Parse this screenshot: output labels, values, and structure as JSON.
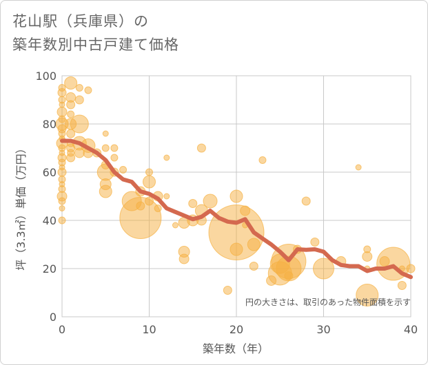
{
  "title_line1": "花山駅（兵庫県）の",
  "title_line2": "築年数別中古戸建て価格",
  "colors": {
    "bubble": "#f5b041",
    "line": "#d4694f",
    "grid": "#c8c8c8"
  },
  "chart_data": {
    "type": "scatter",
    "title": "花山駅（兵庫県）の築年数別中古戸建て価格",
    "xlabel": "築年数（年）",
    "ylabel": "坪（3.3㎡）単価（万円）",
    "xlim": [
      0,
      40
    ],
    "ylim": [
      0,
      100
    ],
    "xticks": [
      0,
      10,
      20,
      30,
      40
    ],
    "yticks": [
      0,
      20,
      40,
      60,
      80,
      100
    ],
    "grid": true,
    "note": "円の大きさは、取引のあった物件面積を示す",
    "bubble_series": {
      "x": [
        0,
        0,
        0,
        0,
        0,
        0,
        0,
        0,
        0,
        0,
        0,
        0,
        0,
        0,
        0,
        0,
        0,
        0,
        0,
        0,
        0,
        0,
        0,
        0,
        1,
        1,
        1,
        1,
        1,
        1,
        1,
        1,
        1,
        1,
        2,
        2,
        2,
        2,
        2,
        3,
        3,
        3,
        4,
        5,
        5,
        5,
        5,
        5,
        5,
        6,
        6,
        6,
        7,
        8,
        9,
        9,
        9,
        10,
        10,
        10,
        11,
        11,
        12,
        12,
        13,
        14,
        14,
        14,
        15,
        15,
        16,
        16,
        16,
        17,
        19,
        20,
        20,
        20,
        21,
        21,
        22,
        22,
        23,
        24,
        25,
        25,
        26,
        26,
        26,
        27,
        28,
        29,
        30,
        32,
        34,
        35,
        35,
        35,
        35,
        37,
        38,
        39,
        39,
        40
      ],
      "y": [
        95,
        93,
        90,
        88,
        85,
        82,
        80,
        78,
        76,
        74,
        72,
        70,
        68,
        66,
        64,
        62,
        60,
        57,
        55,
        53,
        50,
        48,
        45,
        40,
        97,
        91,
        88,
        84,
        80,
        76,
        72,
        70,
        68,
        66,
        95,
        90,
        80,
        72,
        68,
        94,
        71,
        68,
        68,
        76,
        70,
        63,
        60,
        55,
        52,
        70,
        66,
        60,
        61,
        48,
        52,
        46,
        41,
        60,
        56,
        48,
        50,
        45,
        66,
        50,
        38,
        39,
        27,
        24,
        47,
        40,
        70,
        44,
        40,
        48,
        11,
        50,
        35,
        28,
        44,
        38,
        30,
        21,
        65,
        15,
        22,
        18,
        23,
        20,
        17,
        28,
        48,
        31,
        20,
        23,
        62,
        28,
        25,
        20,
        9,
        23,
        22,
        13,
        20,
        20
      ],
      "size": [
        5,
        6,
        5,
        4,
        7,
        5,
        9,
        6,
        5,
        4,
        8,
        5,
        4,
        6,
        5,
        4,
        6,
        5,
        4,
        5,
        7,
        5,
        4,
        5,
        9,
        7,
        6,
        5,
        8,
        6,
        5,
        6,
        5,
        6,
        5,
        6,
        13,
        10,
        7,
        5,
        10,
        7,
        6,
        4,
        5,
        6,
        12,
        8,
        9,
        5,
        5,
        6,
        5,
        14,
        7,
        6,
        30,
        5,
        9,
        6,
        7,
        5,
        4,
        4,
        4,
        8,
        8,
        7,
        6,
        8,
        6,
        9,
        7,
        10,
        6,
        9,
        40,
        9,
        7,
        4,
        9,
        6,
        5,
        7,
        14,
        17,
        25,
        18,
        6,
        6,
        6,
        6,
        15,
        7,
        4,
        5,
        7,
        4,
        16,
        7,
        24,
        6,
        4,
        6
      ]
    },
    "line_series": {
      "x": [
        0,
        1,
        2,
        3,
        4,
        5,
        6,
        7,
        8,
        9,
        10,
        11,
        12,
        13,
        14,
        15,
        16,
        17,
        18,
        19,
        20,
        21,
        22,
        23,
        24,
        25,
        26,
        27,
        28,
        29,
        30,
        31,
        32,
        33,
        34,
        35,
        36,
        37,
        38,
        39,
        40
      ],
      "y": [
        73,
        73,
        72,
        70,
        68,
        65,
        60,
        57,
        56,
        52,
        51,
        49,
        45,
        43.5,
        42,
        40.5,
        41.5,
        44,
        41,
        39.5,
        39,
        40.5,
        35,
        32.5,
        30,
        27,
        23.5,
        28,
        27.8,
        28,
        27,
        23.5,
        21.5,
        21,
        21,
        19,
        20,
        20,
        21,
        18,
        16.5
      ]
    }
  }
}
